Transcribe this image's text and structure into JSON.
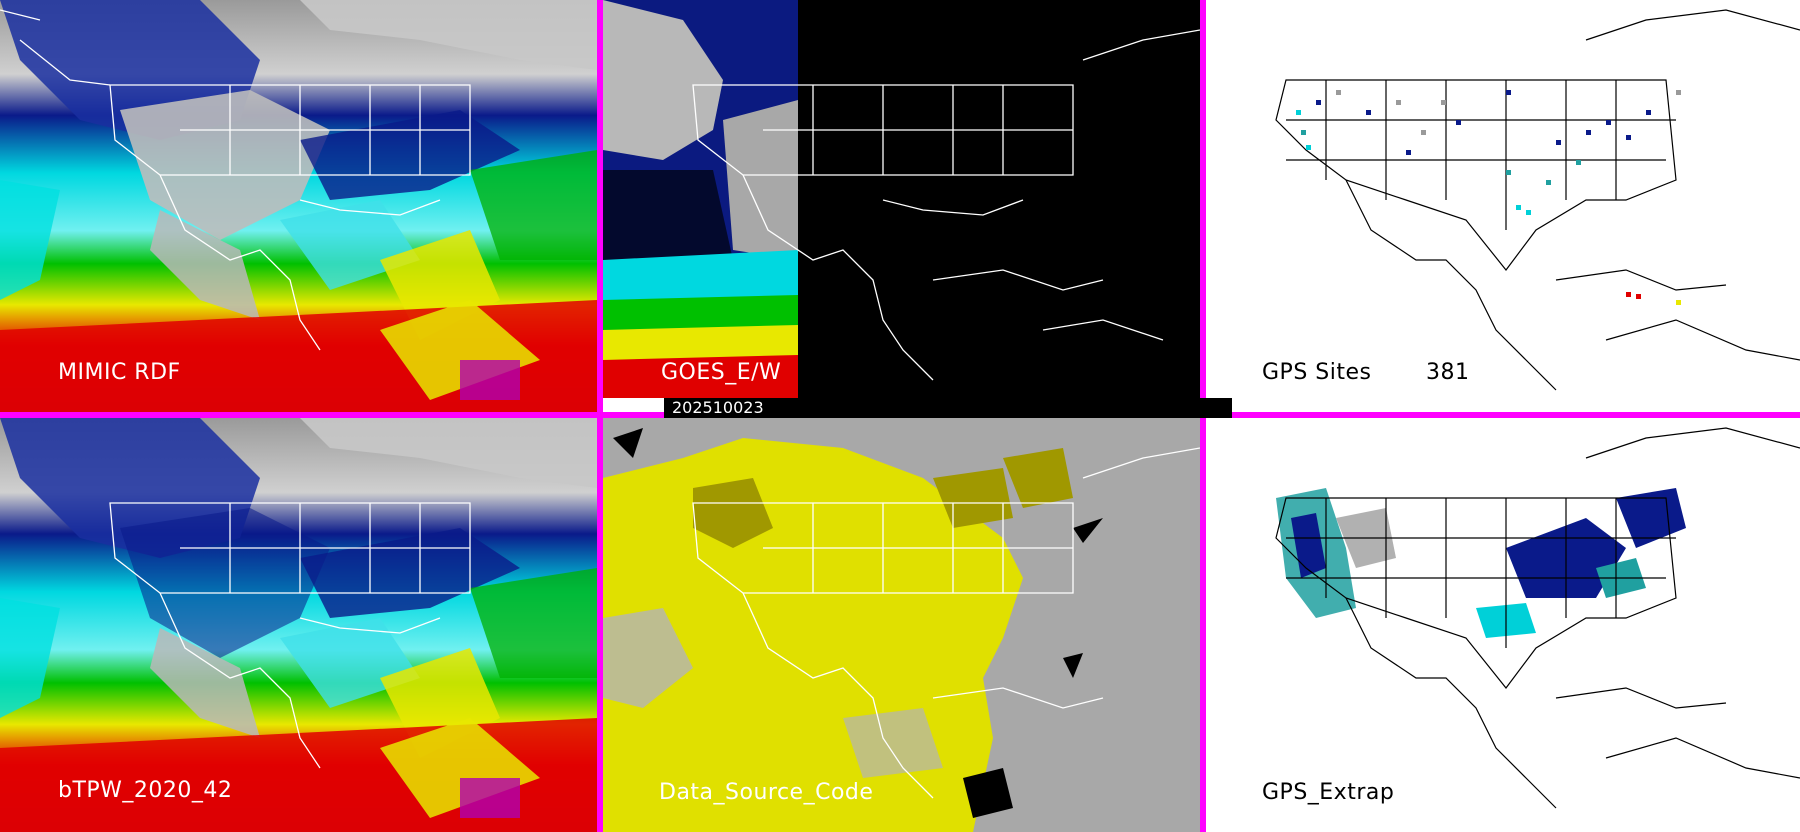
{
  "panels": {
    "mimic_rdf": {
      "label": "MIMIC RDF"
    },
    "goes_ew": {
      "label": "GOES_E/W"
    },
    "gps_sites": {
      "label": "GPS Sites",
      "count": "381"
    },
    "btpw": {
      "label": "bTPW_2020_42"
    },
    "data_source": {
      "label": "Data_Source_Code"
    },
    "gps_extrap": {
      "label": "GPS_Extrap"
    }
  },
  "timestamp": "202510023",
  "colors": {
    "divider": "#ff00ff",
    "very_dry": "#b0b0b0",
    "dry": "#001080",
    "moderate": "#00e0e0",
    "moist": "#00c000",
    "wet": "#e8e800",
    "very_wet": "#e00000",
    "extreme": "#c000c0",
    "source_yellow": "#e0e000",
    "source_olive": "#a09800",
    "source_gray": "#a8a8a8"
  }
}
